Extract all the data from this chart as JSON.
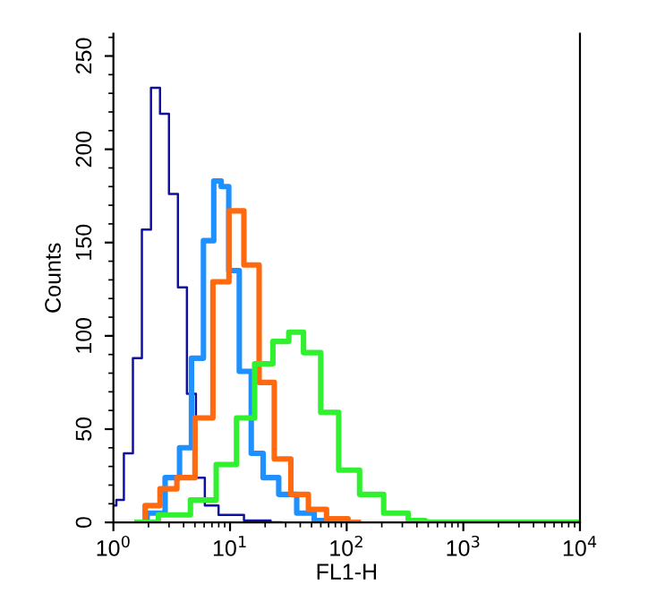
{
  "chart_data": {
    "type": "step",
    "xlabel": "FL1-H",
    "ylabel": "Counts",
    "log": "x",
    "xlim": [
      1,
      10000
    ],
    "ylim": [
      0,
      262
    ],
    "xticks": [
      {
        "value": 1,
        "label": "10$^{0}$"
      },
      {
        "value": 10,
        "label": "10$^{1}$"
      },
      {
        "value": 100,
        "label": "10$^{2}$"
      },
      {
        "value": 1000,
        "label": "10$^{3}$"
      },
      {
        "value": 10000,
        "label": "10$^{4}$"
      }
    ],
    "yticks": [
      0,
      50,
      100,
      150,
      200,
      250
    ],
    "grid": false,
    "legend": false,
    "series": [
      {
        "color": "#1010a0",
        "x": [
          1,
          1.12,
          1.34,
          1.6,
          1.91,
          2.29,
          2.73,
          3.26,
          3.89,
          4.65,
          5.55,
          6.61,
          9.33,
          17,
          27.5
        ],
        "values": [
          9,
          12,
          37,
          88,
          157,
          233,
          219,
          176,
          126,
          69,
          24,
          9,
          4,
          1,
          0
        ]
      },
      {
        "color": "#1e90ff",
        "x": [
          1.6,
          2.29,
          3.26,
          4.12,
          5.22,
          6.61,
          7.89,
          8.91,
          10.6,
          13.4,
          17,
          21.4,
          30.9,
          43.7,
          61.7,
          79.4
        ],
        "values": [
          0,
          5,
          24,
          40,
          88,
          151,
          183,
          180,
          135,
          81,
          37,
          24,
          15,
          5,
          1,
          0
        ]
      },
      {
        "color": "#ff6a10",
        "x": [
          1.6,
          2.14,
          2.88,
          4.12,
          5.89,
          8.37,
          11.2,
          15.1,
          20.4,
          27.5,
          38.9,
          55,
          79.4,
          126
        ],
        "values": [
          0,
          9,
          18,
          24,
          56,
          129,
          167,
          138,
          75,
          34,
          15,
          7,
          2,
          0
        ]
      },
      {
        "color": "#30f030",
        "x": [
          1.6,
          3.26,
          5.89,
          9.33,
          13.4,
          19.1,
          27.5,
          36.3,
          49,
          70.8,
          100,
          158,
          257,
          417,
          525,
          10000
        ],
        "values": [
          0,
          4,
          12,
          31,
          56,
          85,
          97,
          102,
          91,
          59,
          28,
          15,
          5,
          1,
          0,
          0
        ]
      }
    ]
  }
}
